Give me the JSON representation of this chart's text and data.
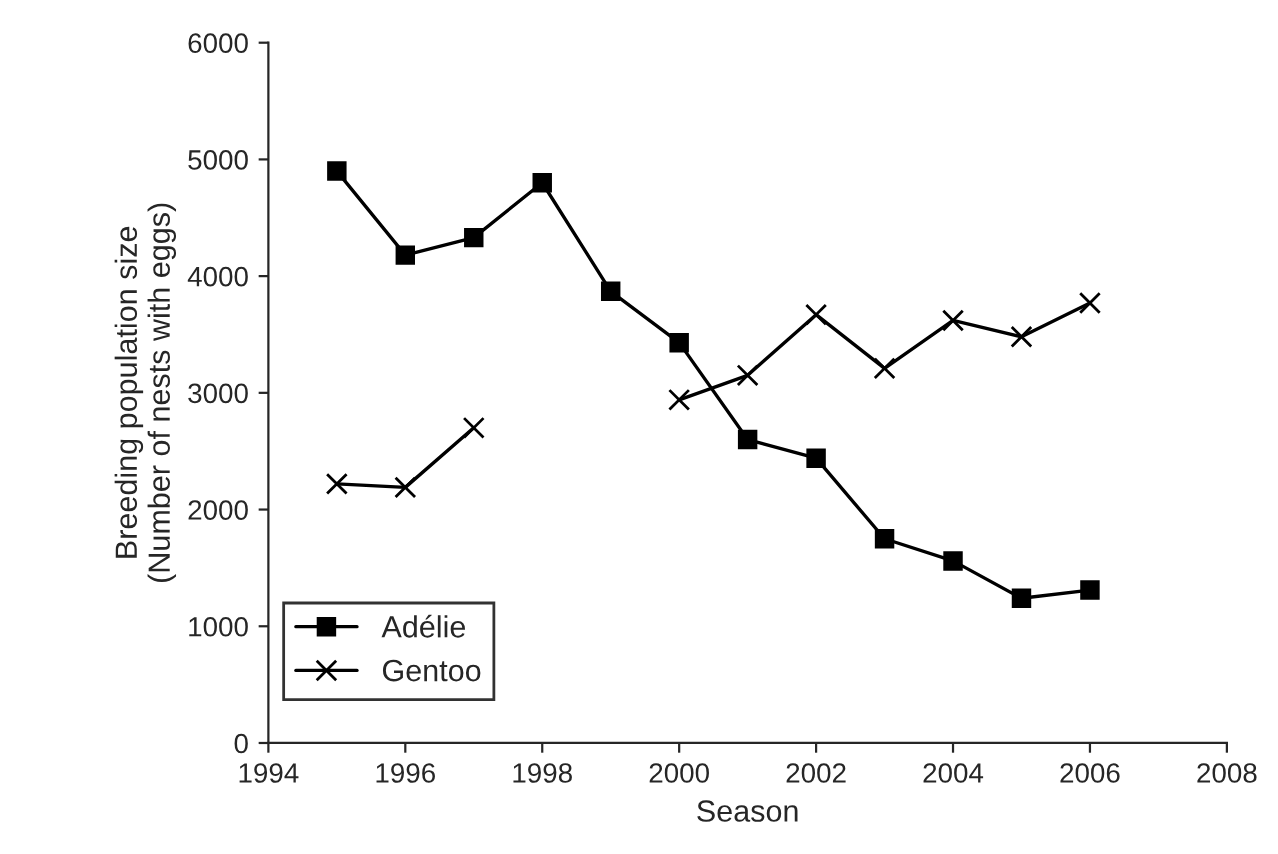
{
  "chart_data": {
    "type": "line",
    "xlabel": "Season",
    "ylabel": "Breeding population size\n(Number of nests with eggs)",
    "x": [
      1995,
      1996,
      1997,
      1998,
      1999,
      2000,
      2001,
      2002,
      2003,
      2004,
      2005,
      2006
    ],
    "series": [
      {
        "name": "Adélie",
        "color": "#000000",
        "marker": "square",
        "values": [
          4900,
          4180,
          4330,
          4800,
          3870,
          3430,
          2600,
          2440,
          1750,
          1560,
          1240,
          1310
        ]
      },
      {
        "name": "Gentoo",
        "color": "#000000",
        "marker": "cross",
        "values": [
          2220,
          2190,
          2700,
          null,
          null,
          2940,
          3150,
          3670,
          3210,
          3620,
          3480,
          3770
        ]
      }
    ],
    "xlim": [
      1994,
      2008
    ],
    "xticks": [
      1994,
      1996,
      1998,
      2000,
      2002,
      2004,
      2006,
      2008
    ],
    "ylim": [
      0,
      6000
    ],
    "yticks": [
      0,
      1000,
      2000,
      3000,
      4000,
      5000,
      6000
    ],
    "grid": false,
    "legend": "bottom left",
    "line_style": "solid"
  }
}
